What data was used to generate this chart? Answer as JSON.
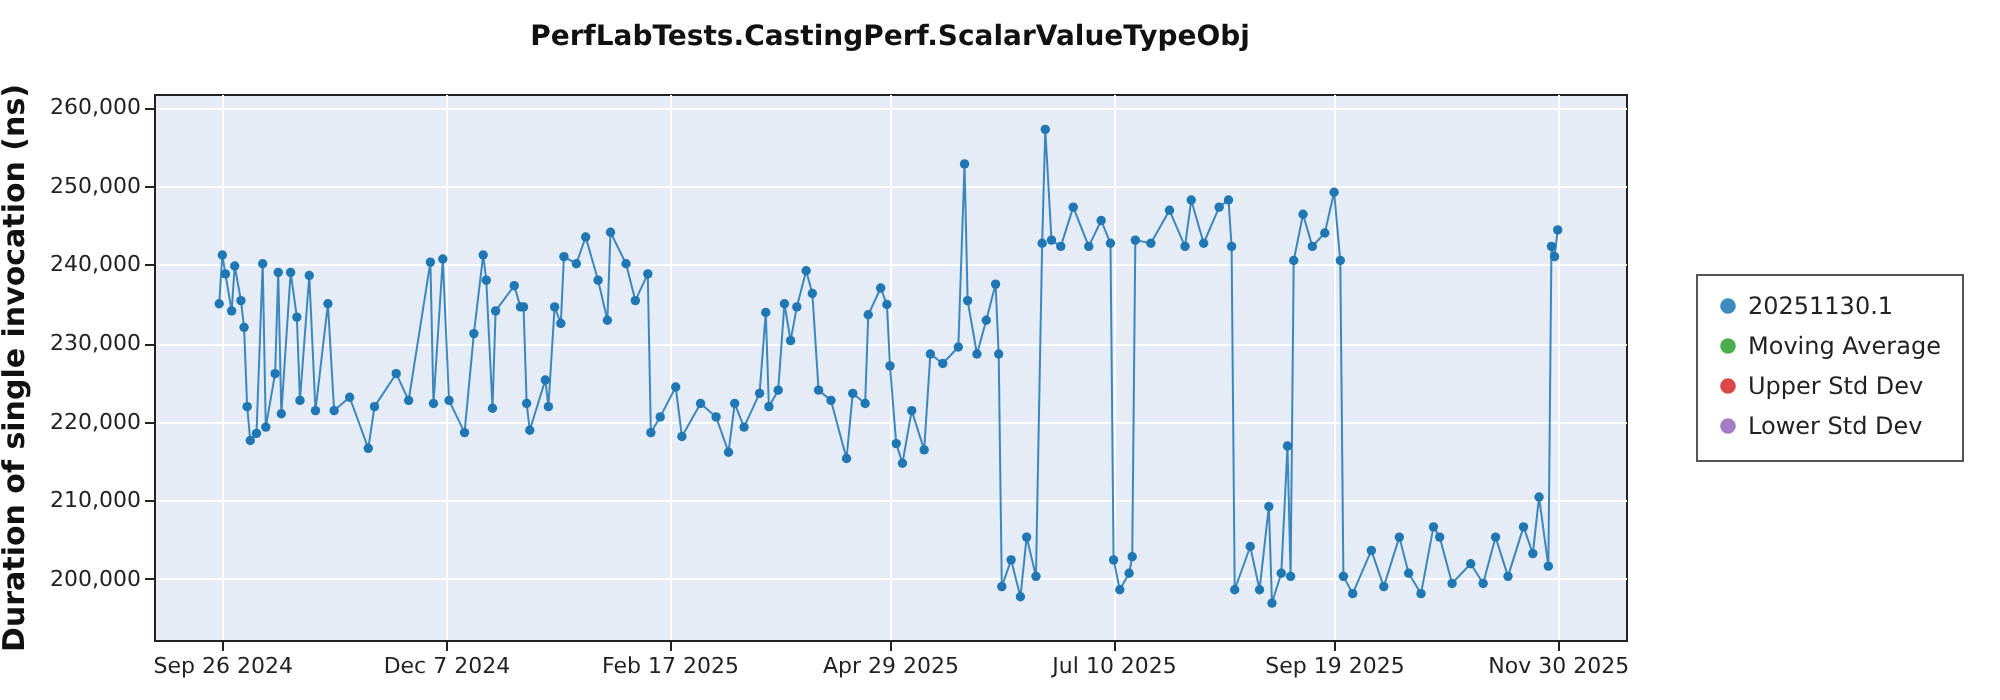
{
  "chart_data": {
    "type": "line",
    "title": "PerfLabTests.CastingPerf.ScalarValueTypeObj",
    "ylabel": "Duration of single invocation (ns)",
    "x": [
      "2024-09-25",
      "2024-09-26",
      "2024-09-27",
      "2024-09-29",
      "2024-09-30",
      "2024-10-02",
      "2024-10-03",
      "2024-10-04",
      "2024-10-05",
      "2024-10-07",
      "2024-10-09",
      "2024-10-10",
      "2024-10-13",
      "2024-10-14",
      "2024-10-15",
      "2024-10-18",
      "2024-10-20",
      "2024-10-21",
      "2024-10-24",
      "2024-10-26",
      "2024-10-30",
      "2024-11-01",
      "2024-11-06",
      "2024-11-12",
      "2024-11-14",
      "2024-11-21",
      "2024-11-25",
      "2024-12-02",
      "2024-12-03",
      "2024-12-06",
      "2024-12-08",
      "2024-12-13",
      "2024-12-16",
      "2024-12-19",
      "2024-12-20",
      "2024-12-22",
      "2024-12-23",
      "2024-12-29",
      "2024-12-31",
      "2025-01-01",
      "2025-01-02",
      "2025-01-03",
      "2025-01-08",
      "2025-01-09",
      "2025-01-11",
      "2025-01-13",
      "2025-01-14",
      "2025-01-18",
      "2025-01-21",
      "2025-01-25",
      "2025-01-28",
      "2025-01-29",
      "2025-02-03",
      "2025-02-06",
      "2025-02-10",
      "2025-02-11",
      "2025-02-14",
      "2025-02-19",
      "2025-02-21",
      "2025-02-27",
      "2025-03-04",
      "2025-03-08",
      "2025-03-10",
      "2025-03-13",
      "2025-03-18",
      "2025-03-20",
      "2025-03-21",
      "2025-03-24",
      "2025-03-26",
      "2025-03-28",
      "2025-03-30",
      "2025-04-02",
      "2025-04-04",
      "2025-04-06",
      "2025-04-10",
      "2025-04-15",
      "2025-04-17",
      "2025-04-21",
      "2025-04-22",
      "2025-04-26",
      "2025-04-28",
      "2025-04-29",
      "2025-05-01",
      "2025-05-03",
      "2025-05-06",
      "2025-05-10",
      "2025-05-12",
      "2025-05-16",
      "2025-05-21",
      "2025-05-23",
      "2025-05-24",
      "2025-05-27",
      "2025-05-30",
      "2025-06-02",
      "2025-06-03",
      "2025-06-04",
      "2025-06-07",
      "2025-06-10",
      "2025-06-12",
      "2025-06-15",
      "2025-06-17",
      "2025-06-18",
      "2025-06-20",
      "2025-06-23",
      "2025-06-27",
      "2025-07-02",
      "2025-07-06",
      "2025-07-09",
      "2025-07-10",
      "2025-07-12",
      "2025-07-15",
      "2025-07-16",
      "2025-07-17",
      "2025-07-22",
      "2025-07-28",
      "2025-08-02",
      "2025-08-04",
      "2025-08-08",
      "2025-08-13",
      "2025-08-16",
      "2025-08-17",
      "2025-08-18",
      "2025-08-23",
      "2025-08-26",
      "2025-08-29",
      "2025-08-30",
      "2025-09-02",
      "2025-09-04",
      "2025-09-05",
      "2025-09-06",
      "2025-09-09",
      "2025-09-12",
      "2025-09-16",
      "2025-09-19",
      "2025-09-21",
      "2025-09-22",
      "2025-09-25",
      "2025-10-01",
      "2025-10-05",
      "2025-10-10",
      "2025-10-13",
      "2025-10-17",
      "2025-10-21",
      "2025-10-23",
      "2025-10-27",
      "2025-11-02",
      "2025-11-06",
      "2025-11-10",
      "2025-11-14",
      "2025-11-19",
      "2025-11-22",
      "2025-11-24",
      "2025-11-27",
      "2025-11-28",
      "2025-11-29",
      "2025-11-30"
    ],
    "series": [
      {
        "name": "20251130.1",
        "color": "#1f77b4",
        "values": [
          235000,
          241200,
          238800,
          234100,
          239800,
          235400,
          232000,
          221900,
          217600,
          218500,
          240100,
          219300,
          226100,
          239000,
          221000,
          239000,
          233300,
          222700,
          238600,
          221400,
          235000,
          221400,
          223100,
          216600,
          221900,
          226100,
          222700,
          240300,
          222300,
          240700,
          222700,
          218600,
          231200,
          241200,
          238000,
          221700,
          234100,
          237300,
          234600,
          234600,
          222300,
          218900,
          225300,
          221900,
          234600,
          232500,
          241000,
          240100,
          243500,
          238000,
          232900,
          244100,
          240100,
          235400,
          238800,
          218600,
          220600,
          224400,
          218100,
          222300,
          220600,
          216100,
          222300,
          219300,
          223600,
          233900,
          221900,
          224000,
          235000,
          230300,
          234600,
          239200,
          236300,
          224000,
          222700,
          215300,
          223600,
          222300,
          233600,
          237000,
          234900,
          227100,
          217200,
          214700,
          221400,
          216400,
          228600,
          227400,
          229500,
          252800,
          235400,
          228600,
          232900,
          237500,
          228600,
          199000,
          202400,
          197700,
          205300,
          200300,
          242700,
          257200,
          243100,
          242300,
          247300,
          242300,
          245600,
          242700,
          202400,
          198600,
          200700,
          202800,
          243100,
          242700,
          246900,
          242300,
          248200,
          242700,
          247300,
          248200,
          242300,
          198600,
          204100,
          198600,
          209200,
          196900,
          200700,
          216900,
          200300,
          240500,
          246400,
          242300,
          244000,
          249200,
          240500,
          200300,
          198100,
          203600,
          199000,
          205300,
          200700,
          198100,
          206600,
          205300,
          199400,
          201900,
          199400,
          205300,
          200300,
          206600,
          203200,
          210400,
          201600,
          242300,
          241000,
          244400
        ]
      },
      {
        "name": "Moving Average",
        "color": "#2ca02c",
        "values": [
          null,
          null,
          null,
          null,
          null,
          null,
          null,
          null,
          null,
          null,
          null,
          null,
          null,
          null,
          null,
          null,
          null,
          null,
          null,
          null,
          null,
          null,
          null,
          null,
          null,
          null,
          null,
          null,
          null,
          null,
          null,
          null,
          null,
          null,
          null,
          null,
          null,
          null,
          null,
          null,
          null,
          null,
          null,
          null,
          null,
          null,
          null,
          null,
          null,
          null,
          null,
          null,
          null,
          null,
          null,
          null,
          null,
          null,
          null,
          null,
          null,
          null,
          null,
          null,
          null,
          null,
          null,
          null,
          null,
          null,
          null,
          null,
          null,
          null,
          null,
          null,
          null,
          null,
          null,
          null,
          null,
          null,
          null,
          null,
          null,
          null,
          null,
          null,
          null,
          null,
          null,
          null,
          null,
          null,
          null,
          null,
          null,
          null,
          null,
          null,
          null,
          null,
          null,
          null,
          null,
          null,
          null,
          null,
          null,
          null,
          null,
          null,
          null,
          null,
          null,
          null,
          null,
          null,
          null,
          null,
          null,
          null,
          null,
          null,
          null,
          null,
          null,
          null,
          null,
          null,
          null,
          null,
          null,
          null,
          null,
          null,
          null,
          null,
          null,
          null,
          null,
          null,
          null,
          null,
          null,
          null,
          null,
          null,
          null,
          null,
          null,
          null,
          null,
          null,
          null,
          null
        ]
      },
      {
        "name": "Upper Std Dev",
        "color": "#d62728",
        "values": [
          null,
          null,
          null,
          null,
          null,
          null,
          null,
          null,
          null,
          null,
          null,
          null,
          null,
          null,
          null,
          null,
          null,
          null,
          null,
          null,
          null,
          null,
          null,
          null,
          null,
          null,
          null,
          null,
          null,
          null,
          null,
          null,
          null,
          null,
          null,
          null,
          null,
          null,
          null,
          null,
          null,
          null,
          null,
          null,
          null,
          null,
          null,
          null,
          null,
          null,
          null,
          null,
          null,
          null,
          null,
          null,
          null,
          null,
          null,
          null,
          null,
          null,
          null,
          null,
          null,
          null,
          null,
          null,
          null,
          null,
          null,
          null,
          null,
          null,
          null,
          null,
          null,
          null,
          null,
          null,
          null,
          null,
          null,
          null,
          null,
          null,
          null,
          null,
          null,
          null,
          null,
          null,
          null,
          null,
          null,
          null,
          null,
          null,
          null,
          null,
          null,
          null,
          null,
          null,
          null,
          null,
          null,
          null,
          null,
          null,
          null,
          null,
          null,
          null,
          null,
          null,
          null,
          null,
          null,
          null,
          null,
          null,
          null,
          null,
          null,
          null,
          null,
          null,
          null,
          null,
          null,
          null,
          null,
          null,
          null,
          null,
          null,
          null,
          null,
          null,
          null,
          null,
          null,
          null,
          null,
          null,
          null,
          null,
          null,
          null,
          null,
          null,
          null,
          null,
          null,
          null
        ]
      },
      {
        "name": "Lower Std Dev",
        "color": "#9467bd",
        "values": [
          null,
          null,
          null,
          null,
          null,
          null,
          null,
          null,
          null,
          null,
          null,
          null,
          null,
          null,
          null,
          null,
          null,
          null,
          null,
          null,
          null,
          null,
          null,
          null,
          null,
          null,
          null,
          null,
          null,
          null,
          null,
          null,
          null,
          null,
          null,
          null,
          null,
          null,
          null,
          null,
          null,
          null,
          null,
          null,
          null,
          null,
          null,
          null,
          null,
          null,
          null,
          null,
          null,
          null,
          null,
          null,
          null,
          null,
          null,
          null,
          null,
          null,
          null,
          null,
          null,
          null,
          null,
          null,
          null,
          null,
          null,
          null,
          null,
          null,
          null,
          null,
          null,
          null,
          null,
          null,
          null,
          null,
          null,
          null,
          null,
          null,
          null,
          null,
          null,
          null,
          null,
          null,
          null,
          null,
          null,
          null,
          null,
          null,
          null,
          null,
          null,
          null,
          null,
          null,
          null,
          null,
          null,
          null,
          null,
          null,
          null,
          null,
          null,
          null,
          null,
          null,
          null,
          null,
          null,
          null,
          null,
          null,
          null,
          null,
          null,
          null,
          null,
          null,
          null,
          null,
          null,
          null,
          null,
          null,
          null,
          null,
          null,
          null,
          null,
          null,
          null,
          null,
          null,
          null,
          null,
          null,
          null,
          null,
          null,
          null,
          null,
          null,
          null,
          null,
          null,
          null
        ]
      }
    ],
    "xlim": [
      "2024-09-04",
      "2025-12-22"
    ],
    "xticks": [
      {
        "value": "2024-09-26",
        "label": "Sep 26 2024"
      },
      {
        "value": "2024-12-07",
        "label": "Dec 7 2024"
      },
      {
        "value": "2025-02-17",
        "label": "Feb 17 2025"
      },
      {
        "value": "2025-04-29",
        "label": "Apr 29 2025"
      },
      {
        "value": "2025-07-10",
        "label": "Jul 10 2025"
      },
      {
        "value": "2025-09-19",
        "label": "Sep 19 2025"
      },
      {
        "value": "2025-11-30",
        "label": "Nov 30 2025"
      }
    ],
    "ylim": [
      192200,
      261700
    ],
    "yticks": [
      {
        "value": 200000,
        "label": "200,000"
      },
      {
        "value": 210000,
        "label": "210,000"
      },
      {
        "value": 220000,
        "label": "220,000"
      },
      {
        "value": 230000,
        "label": "230,000"
      },
      {
        "value": 240000,
        "label": "240,000"
      },
      {
        "value": 250000,
        "label": "250,000"
      },
      {
        "value": 260000,
        "label": "260,000"
      }
    ],
    "grid": true,
    "legend": "right",
    "marker": "circle",
    "line_style": "solid"
  }
}
